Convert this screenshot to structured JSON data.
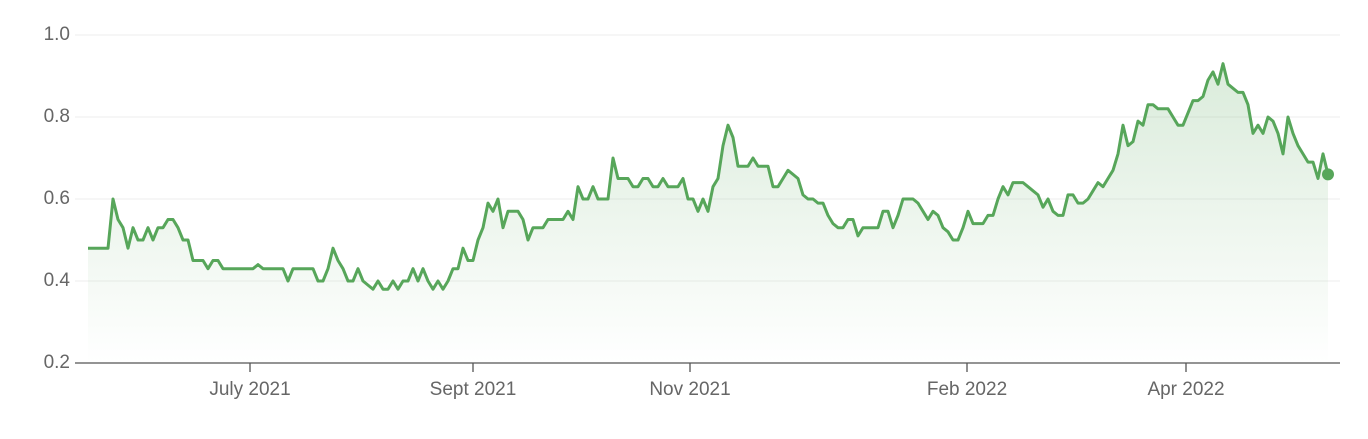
{
  "chart_data": {
    "type": "line",
    "color": "#57a65a",
    "values": [
      0.48,
      0.48,
      0.48,
      0.48,
      0.48,
      0.6,
      0.55,
      0.53,
      0.48,
      0.53,
      0.5,
      0.5,
      0.53,
      0.5,
      0.53,
      0.53,
      0.55,
      0.55,
      0.53,
      0.5,
      0.5,
      0.45,
      0.45,
      0.45,
      0.43,
      0.45,
      0.45,
      0.43,
      0.43,
      0.43,
      0.43,
      0.43,
      0.43,
      0.43,
      0.44,
      0.43,
      0.43,
      0.43,
      0.43,
      0.43,
      0.4,
      0.43,
      0.43,
      0.43,
      0.43,
      0.43,
      0.4,
      0.4,
      0.43,
      0.48,
      0.45,
      0.43,
      0.4,
      0.4,
      0.43,
      0.4,
      0.39,
      0.38,
      0.4,
      0.38,
      0.38,
      0.4,
      0.38,
      0.4,
      0.4,
      0.43,
      0.4,
      0.43,
      0.4,
      0.38,
      0.4,
      0.38,
      0.4,
      0.43,
      0.43,
      0.48,
      0.45,
      0.45,
      0.5,
      0.53,
      0.59,
      0.57,
      0.6,
      0.53,
      0.57,
      0.57,
      0.57,
      0.55,
      0.5,
      0.53,
      0.53,
      0.53,
      0.55,
      0.55,
      0.55,
      0.55,
      0.57,
      0.55,
      0.63,
      0.6,
      0.6,
      0.63,
      0.6,
      0.6,
      0.6,
      0.7,
      0.65,
      0.65,
      0.65,
      0.63,
      0.63,
      0.65,
      0.65,
      0.63,
      0.63,
      0.65,
      0.63,
      0.63,
      0.63,
      0.65,
      0.6,
      0.6,
      0.57,
      0.6,
      0.57,
      0.63,
      0.65,
      0.73,
      0.78,
      0.75,
      0.68,
      0.68,
      0.68,
      0.7,
      0.68,
      0.68,
      0.68,
      0.63,
      0.63,
      0.65,
      0.67,
      0.66,
      0.65,
      0.61,
      0.6,
      0.6,
      0.59,
      0.59,
      0.56,
      0.54,
      0.53,
      0.53,
      0.55,
      0.55,
      0.51,
      0.53,
      0.53,
      0.53,
      0.53,
      0.57,
      0.57,
      0.53,
      0.56,
      0.6,
      0.6,
      0.6,
      0.59,
      0.57,
      0.55,
      0.57,
      0.56,
      0.53,
      0.52,
      0.5,
      0.5,
      0.53,
      0.57,
      0.54,
      0.54,
      0.54,
      0.56,
      0.56,
      0.6,
      0.63,
      0.61,
      0.64,
      0.64,
      0.64,
      0.63,
      0.62,
      0.61,
      0.58,
      0.6,
      0.57,
      0.56,
      0.56,
      0.61,
      0.61,
      0.59,
      0.59,
      0.6,
      0.62,
      0.64,
      0.63,
      0.65,
      0.67,
      0.71,
      0.78,
      0.73,
      0.74,
      0.79,
      0.78,
      0.83,
      0.83,
      0.82,
      0.82,
      0.82,
      0.8,
      0.78,
      0.78,
      0.81,
      0.84,
      0.84,
      0.85,
      0.89,
      0.91,
      0.88,
      0.93,
      0.88,
      0.87,
      0.86,
      0.86,
      0.83,
      0.76,
      0.78,
      0.76,
      0.8,
      0.79,
      0.76,
      0.71,
      0.8,
      0.76,
      0.73,
      0.71,
      0.69,
      0.69,
      0.65,
      0.71,
      0.66
    ],
    "xlim": [
      0,
      248
    ],
    "xticks": [
      {
        "value": 32.4,
        "label": "July 2021"
      },
      {
        "value": 77,
        "label": "Sept 2021"
      },
      {
        "value": 120.4,
        "label": "Nov 2021"
      },
      {
        "value": 175.8,
        "label": "Feb 2022"
      },
      {
        "value": 219.6,
        "label": "Apr 2022"
      }
    ],
    "ylim": [
      0.2,
      1.0
    ],
    "yticks": [
      0.2,
      0.4,
      0.6,
      0.8,
      {
        "value": 1.0,
        "label": "1.0"
      }
    ],
    "grid": true
  }
}
